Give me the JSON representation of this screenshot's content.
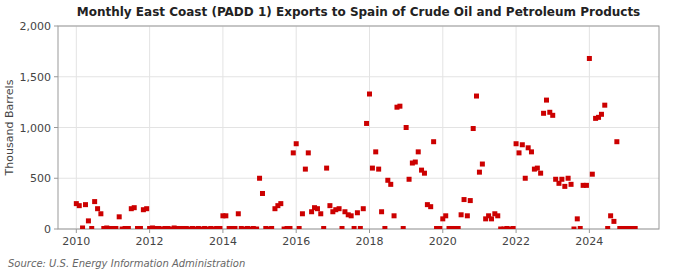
{
  "chart_data": {
    "type": "scatter",
    "title": "Monthly East Coast (PADD 1) Exports to Spain of Crude Oil and Petroleum Products",
    "ylabel": "Thousand Barrels",
    "annotation": "Source: U.S. Energy Information Administration",
    "color": "#cc0000",
    "marker": "square",
    "grid": true,
    "xlim": [
      2009.5,
      2025.9
    ],
    "xticks": [
      2010,
      2012,
      2014,
      2016,
      2018,
      2020,
      2022,
      2024
    ],
    "ylim": [
      0,
      2000
    ],
    "yticks": [
      0,
      500,
      {
        "value": 1000,
        "label": "1,000"
      },
      {
        "value": 1500,
        "label": "1,500"
      },
      {
        "value": 2000,
        "label": "2,000"
      }
    ],
    "x": [
      2010.0,
      2010.08,
      2010.17,
      2010.25,
      2010.33,
      2010.42,
      2010.5,
      2010.58,
      2010.67,
      2010.75,
      2010.83,
      2010.92,
      2011.0,
      2011.08,
      2011.17,
      2011.25,
      2011.33,
      2011.42,
      2011.5,
      2011.58,
      2011.67,
      2011.75,
      2011.83,
      2011.92,
      2012.0,
      2012.08,
      2012.17,
      2012.25,
      2012.33,
      2012.42,
      2012.5,
      2012.58,
      2012.67,
      2012.75,
      2012.83,
      2012.92,
      2013.0,
      2013.08,
      2013.17,
      2013.25,
      2013.33,
      2013.42,
      2013.5,
      2013.58,
      2013.67,
      2013.75,
      2013.83,
      2013.92,
      2014.0,
      2014.08,
      2014.17,
      2014.25,
      2014.33,
      2014.42,
      2014.5,
      2014.58,
      2014.67,
      2014.75,
      2014.83,
      2014.92,
      2015.0,
      2015.08,
      2015.17,
      2015.25,
      2015.33,
      2015.42,
      2015.5,
      2015.58,
      2015.67,
      2015.75,
      2015.83,
      2015.92,
      2016.0,
      2016.08,
      2016.17,
      2016.25,
      2016.33,
      2016.42,
      2016.5,
      2016.58,
      2016.67,
      2016.75,
      2016.83,
      2016.92,
      2017.0,
      2017.08,
      2017.17,
      2017.25,
      2017.33,
      2017.42,
      2017.5,
      2017.58,
      2017.67,
      2017.75,
      2017.83,
      2017.92,
      2018.0,
      2018.08,
      2018.17,
      2018.25,
      2018.33,
      2018.42,
      2018.5,
      2018.58,
      2018.67,
      2018.75,
      2018.83,
      2018.92,
      2019.0,
      2019.08,
      2019.17,
      2019.25,
      2019.33,
      2019.42,
      2019.5,
      2019.58,
      2019.67,
      2019.75,
      2019.83,
      2019.92,
      2020.0,
      2020.08,
      2020.17,
      2020.25,
      2020.33,
      2020.42,
      2020.5,
      2020.58,
      2020.67,
      2020.75,
      2020.83,
      2020.92,
      2021.0,
      2021.08,
      2021.17,
      2021.25,
      2021.33,
      2021.42,
      2021.5,
      2021.58,
      2021.67,
      2021.75,
      2021.83,
      2021.92,
      2022.0,
      2022.08,
      2022.17,
      2022.25,
      2022.33,
      2022.42,
      2022.5,
      2022.58,
      2022.67,
      2022.75,
      2022.83,
      2022.92,
      2023.0,
      2023.08,
      2023.17,
      2023.25,
      2023.33,
      2023.42,
      2023.5,
      2023.58,
      2023.67,
      2023.75,
      2023.83,
      2023.92,
      2024.0,
      2024.08,
      2024.17,
      2024.25,
      2024.33,
      2024.42,
      2024.5,
      2024.58,
      2024.67,
      2024.75,
      2024.83,
      2024.92,
      2025.0,
      2025.08,
      2025.17,
      2025.25
    ],
    "values": [
      250,
      230,
      10,
      240,
      80,
      5,
      270,
      200,
      150,
      5,
      10,
      5,
      5,
      5,
      120,
      0,
      5,
      5,
      200,
      210,
      5,
      5,
      190,
      200,
      5,
      10,
      5,
      5,
      0,
      5,
      5,
      0,
      10,
      5,
      5,
      5,
      5,
      0,
      5,
      0,
      5,
      0,
      5,
      0,
      5,
      0,
      5,
      5,
      130,
      130,
      5,
      5,
      5,
      150,
      5,
      0,
      5,
      0,
      5,
      0,
      500,
      350,
      5,
      0,
      5,
      200,
      230,
      250,
      0,
      5,
      5,
      750,
      840,
      5,
      150,
      590,
      750,
      170,
      210,
      200,
      150,
      5,
      600,
      230,
      170,
      190,
      200,
      5,
      170,
      140,
      130,
      5,
      160,
      5,
      200,
      1040,
      1330,
      600,
      760,
      590,
      170,
      5,
      480,
      440,
      130,
      1200,
      1210,
      5,
      1000,
      490,
      650,
      660,
      760,
      580,
      550,
      240,
      220,
      860,
      5,
      5,
      100,
      130,
      5,
      5,
      5,
      5,
      140,
      290,
      130,
      280,
      990,
      1310,
      560,
      640,
      100,
      130,
      100,
      150,
      130,
      0,
      0,
      5,
      0,
      5,
      840,
      750,
      830,
      500,
      800,
      760,
      590,
      600,
      550,
      1140,
      1270,
      1150,
      1120,
      490,
      450,
      490,
      420,
      500,
      440,
      0,
      100,
      5,
      430,
      430,
      1680,
      540,
      1090,
      1100,
      1130,
      1220,
      5,
      130,
      75,
      860,
      5,
      5,
      5,
      5,
      5,
      5
    ]
  }
}
